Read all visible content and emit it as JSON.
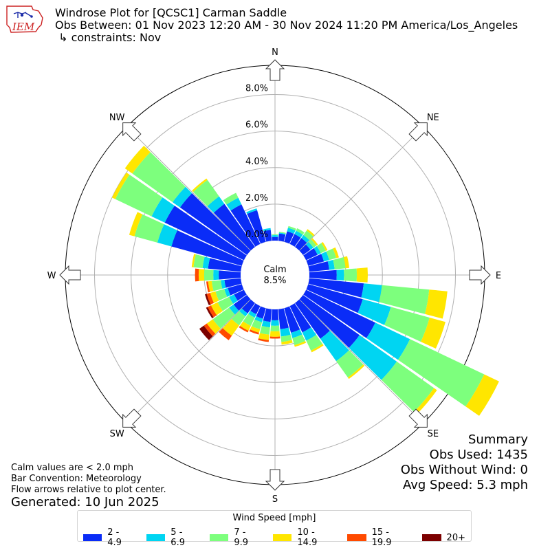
{
  "title_lines": [
    "Windrose Plot for [QCSC1] Carman Saddle",
    "Obs Between: 01 Nov 2023 12:20 AM - 30 Nov 2024 11:20 PM America/Los_Angeles",
    " ↳ constraints: Nov"
  ],
  "logo_text": "IEM",
  "calm": {
    "label": "Calm",
    "value": "8.5%"
  },
  "summary": {
    "heading": "Summary",
    "obs_used": "Obs Used: 1435",
    "obs_without_wind": "Obs Without Wind: 0",
    "avg_speed": "Avg Speed: 5.3 mph"
  },
  "notes": [
    "Calm values are < 2.0 mph",
    "Bar Convention: Meteorology",
    "Flow arrows relative to plot center."
  ],
  "generated": "Generated: 10 Jun 2025",
  "colors": {
    "bins": [
      "#0a2cf7",
      "#00d5f2",
      "#7dff7d",
      "#ffe600",
      "#ff4a00",
      "#7c0000"
    ],
    "grid": "#b0b0b0"
  },
  "chart_data": {
    "type": "windrose",
    "calm_percent": 8.5,
    "rlim": [
      0,
      9.6
    ],
    "radial_ticks": [
      0,
      2,
      4,
      6,
      8
    ],
    "radial_tick_labels": [
      "0.0%",
      "2.0%",
      "4.0%",
      "6.0%",
      "8.0%"
    ],
    "compass_labels": [
      "N",
      "NE",
      "E",
      "SE",
      "S",
      "SW",
      "W",
      "NW"
    ],
    "legend_title": "Wind Speed [mph]",
    "speed_bins": [
      "2 - 4.9",
      "5 - 6.9",
      "7 - 9.9",
      "10 - 14.9",
      "15 - 19.9",
      "20+"
    ],
    "direction_bins_deg": [
      0,
      10,
      20,
      30,
      40,
      50,
      60,
      70,
      80,
      90,
      100,
      110,
      120,
      130,
      140,
      150,
      160,
      170,
      180,
      190,
      200,
      210,
      220,
      230,
      240,
      250,
      260,
      270,
      280,
      290,
      300,
      310,
      320,
      330,
      340,
      350
    ],
    "cumulative_percent": [
      [
        0.2,
        0.3,
        0.35,
        0.35,
        0.35,
        0.35
      ],
      [
        0.4,
        0.45,
        0.5,
        0.5,
        0.5,
        0.5
      ],
      [
        0.6,
        0.8,
        0.9,
        0.9,
        0.9,
        0.9
      ],
      [
        0.6,
        0.8,
        0.95,
        0.95,
        0.95,
        0.95
      ],
      [
        0.6,
        0.8,
        1.1,
        1.2,
        1.2,
        1.2
      ],
      [
        0.5,
        0.7,
        0.9,
        1.0,
        1.0,
        1.0
      ],
      [
        0.7,
        0.9,
        1.2,
        1.3,
        1.3,
        1.3
      ],
      [
        0.9,
        1.2,
        1.6,
        1.75,
        1.75,
        1.75
      ],
      [
        1.1,
        1.4,
        2.0,
        2.2,
        2.2,
        2.2
      ],
      [
        1.5,
        1.9,
        2.6,
        3.2,
        3.2,
        3.2
      ],
      [
        3.0,
        4.0,
        6.6,
        7.6,
        7.6,
        7.6
      ],
      [
        3.1,
        4.7,
        6.9,
        7.8,
        7.8,
        7.8
      ],
      [
        4.2,
        6.3,
        10.8,
        11.7,
        11.7,
        11.7
      ],
      [
        3.8,
        6.3,
        8.8,
        9.0,
        9.0,
        9.0
      ],
      [
        2.4,
        3.9,
        5.0,
        5.1,
        5.1,
        5.1
      ],
      [
        1.6,
        2.1,
        2.7,
        2.8,
        2.8,
        2.8
      ],
      [
        1.4,
        1.7,
        2.1,
        2.2,
        2.2,
        2.2
      ],
      [
        1.1,
        1.5,
        1.8,
        1.95,
        1.95,
        1.95
      ],
      [
        0.6,
        0.9,
        1.2,
        1.5,
        1.6,
        1.6
      ],
      [
        0.7,
        1.0,
        1.4,
        1.7,
        1.8,
        1.8
      ],
      [
        0.6,
        0.8,
        1.2,
        1.4,
        1.5,
        1.5
      ],
      [
        0.5,
        0.7,
        1.2,
        1.5,
        1.6,
        1.6
      ],
      [
        0.7,
        0.9,
        1.5,
        2.2,
        2.5,
        2.5
      ],
      [
        0.9,
        1.2,
        2.3,
        2.7,
        2.9,
        3.2
      ],
      [
        0.6,
        0.9,
        1.6,
        2.0,
        2.2,
        2.3
      ],
      [
        0.8,
        1.0,
        1.5,
        1.8,
        2.0,
        2.1
      ],
      [
        0.9,
        1.1,
        1.6,
        1.8,
        1.9,
        1.9
      ],
      [
        1.2,
        1.5,
        2.0,
        2.3,
        2.5,
        2.5
      ],
      [
        1.8,
        2.1,
        2.6,
        2.7,
        2.7,
        2.7
      ],
      [
        4.0,
        4.8,
        6.1,
        6.4,
        6.4,
        6.4
      ],
      [
        4.8,
        5.6,
        7.8,
        8.0,
        8.0,
        8.0
      ],
      [
        4.5,
        5.0,
        7.7,
        8.2,
        8.2,
        8.2
      ],
      [
        2.9,
        3.4,
        4.5,
        4.6,
        4.6,
        4.6
      ],
      [
        2.4,
        2.8,
        3.1,
        3.1,
        3.1,
        3.1
      ],
      [
        1.8,
        1.9,
        1.9,
        1.9,
        1.9,
        1.9
      ],
      [
        0.6,
        0.7,
        0.7,
        0.7,
        0.7,
        0.7
      ]
    ]
  }
}
